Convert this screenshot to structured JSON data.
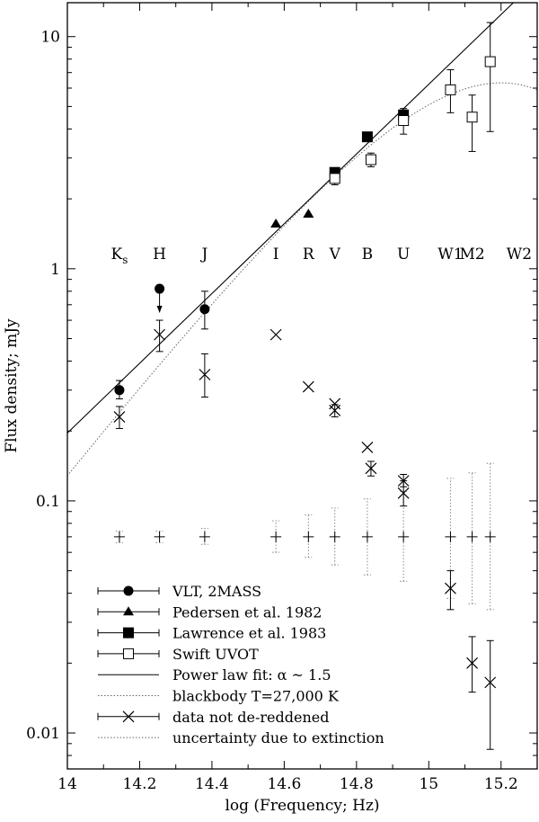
{
  "chart_data": {
    "type": "scatter",
    "xlabel": "log (Frequency; Hz)",
    "ylabel": "Flux density; mJy",
    "xlim": [
      14,
      15.3
    ],
    "ylim": [
      0.007,
      14
    ],
    "yscale": "log",
    "x_ticks": [
      {
        "v": 14,
        "label": "14"
      },
      {
        "v": 14.2,
        "label": "14.2"
      },
      {
        "v": 14.4,
        "label": "14.4"
      },
      {
        "v": 14.6,
        "label": "14.6"
      },
      {
        "v": 14.8,
        "label": "14.8"
      },
      {
        "v": 15,
        "label": "15"
      },
      {
        "v": 15.2,
        "label": "15.2"
      }
    ],
    "y_ticks": [
      {
        "v": 0.01,
        "label": "0.01"
      },
      {
        "v": 0.1,
        "label": "0.1"
      },
      {
        "v": 1,
        "label": "1"
      },
      {
        "v": 10,
        "label": "10"
      }
    ],
    "band_labels": [
      {
        "x": 14.144,
        "main": "K",
        "sub": "s"
      },
      {
        "x": 14.255,
        "main": "H",
        "sub": ""
      },
      {
        "x": 14.38,
        "main": "J",
        "sub": ""
      },
      {
        "x": 14.577,
        "main": "I",
        "sub": ""
      },
      {
        "x": 14.667,
        "main": "R",
        "sub": ""
      },
      {
        "x": 14.74,
        "main": "V",
        "sub": ""
      },
      {
        "x": 14.83,
        "main": "B",
        "sub": ""
      },
      {
        "x": 14.93,
        "main": "U",
        "sub": ""
      },
      {
        "x": 15.06,
        "main": "W1",
        "sub": ""
      },
      {
        "x": 15.12,
        "main": "M2",
        "sub": ""
      },
      {
        "x": 15.25,
        "main": "W2",
        "sub": ""
      }
    ],
    "series": [
      {
        "name": "VLT, 2MASS",
        "marker": "circle",
        "points": [
          {
            "x": 14.144,
            "y": 0.3,
            "lo": 0.275,
            "hi": 0.33
          },
          {
            "x": 14.255,
            "y": 0.82,
            "upper_limit": true
          },
          {
            "x": 14.38,
            "y": 0.67,
            "lo": 0.55,
            "hi": 0.8
          }
        ]
      },
      {
        "name": "Pedersen et al. 1982",
        "marker": "triangle",
        "points": [
          {
            "x": 14.577,
            "y": 1.56
          },
          {
            "x": 14.667,
            "y": 1.72
          }
        ]
      },
      {
        "name": "Lawrence et al. 1983",
        "marker": "square-filled",
        "points": [
          {
            "x": 14.74,
            "y": 2.6
          },
          {
            "x": 14.83,
            "y": 3.7
          },
          {
            "x": 14.93,
            "y": 4.6
          }
        ]
      },
      {
        "name": "Swift UVOT",
        "marker": "square-open",
        "points": [
          {
            "x": 14.74,
            "y": 2.45,
            "lo": 2.3,
            "hi": 2.6
          },
          {
            "x": 14.84,
            "y": 2.95,
            "lo": 2.75,
            "hi": 3.15
          },
          {
            "x": 14.93,
            "y": 4.35,
            "lo": 3.8,
            "hi": 4.9
          },
          {
            "x": 15.06,
            "y": 5.9,
            "lo": 4.7,
            "hi": 7.2
          },
          {
            "x": 15.12,
            "y": 4.5,
            "lo": 3.2,
            "hi": 5.6
          },
          {
            "x": 15.17,
            "y": 7.8,
            "lo": 3.9,
            "hi": 11.5
          }
        ]
      },
      {
        "name": "Power law fit: α ~ 1.5",
        "marker": "line-solid",
        "line": [
          [
            14,
            0.196
          ],
          [
            15.3,
            17.6
          ]
        ]
      },
      {
        "name": "blackbody T=27,000 K",
        "marker": "line-dotted",
        "curve": {
          "T": 27000,
          "norm_x": 14.93,
          "norm_y": 4.35
        }
      },
      {
        "name": "data not de-reddened",
        "marker": "cross",
        "points": [
          {
            "x": 14.144,
            "y": 0.23,
            "lo": 0.205,
            "hi": 0.255
          },
          {
            "x": 14.255,
            "y": 0.52,
            "lo": 0.44,
            "hi": 0.6
          },
          {
            "x": 14.38,
            "y": 0.35,
            "lo": 0.28,
            "hi": 0.43
          },
          {
            "x": 14.577,
            "y": 0.52
          },
          {
            "x": 14.667,
            "y": 0.31
          },
          {
            "x": 14.74,
            "y": 0.262
          },
          {
            "x": 14.74,
            "y": 0.245,
            "lo": 0.23,
            "hi": 0.26
          },
          {
            "x": 14.83,
            "y": 0.17
          },
          {
            "x": 14.84,
            "y": 0.138,
            "lo": 0.128,
            "hi": 0.148
          },
          {
            "x": 14.93,
            "y": 0.122,
            "lo": 0.115,
            "hi": 0.13
          },
          {
            "x": 14.93,
            "y": 0.108,
            "lo": 0.095,
            "hi": 0.122
          },
          {
            "x": 15.06,
            "y": 0.042,
            "lo": 0.034,
            "hi": 0.05
          },
          {
            "x": 15.12,
            "y": 0.02,
            "lo": 0.015,
            "hi": 0.026
          },
          {
            "x": 15.17,
            "y": 0.0165,
            "lo": 0.0085,
            "hi": 0.025
          }
        ]
      },
      {
        "name": "uncertainty due to extinction",
        "marker": "plus-dotted-bars",
        "y": 0.07,
        "points": [
          {
            "x": 14.144,
            "lo": 0.066,
            "hi": 0.074
          },
          {
            "x": 14.255,
            "lo": 0.066,
            "hi": 0.074
          },
          {
            "x": 14.38,
            "lo": 0.065,
            "hi": 0.076
          },
          {
            "x": 14.577,
            "lo": 0.06,
            "hi": 0.082
          },
          {
            "x": 14.667,
            "lo": 0.057,
            "hi": 0.087
          },
          {
            "x": 14.74,
            "lo": 0.053,
            "hi": 0.093
          },
          {
            "x": 14.83,
            "lo": 0.048,
            "hi": 0.102
          },
          {
            "x": 14.93,
            "lo": 0.045,
            "hi": 0.11
          },
          {
            "x": 15.06,
            "lo": 0.038,
            "hi": 0.125
          },
          {
            "x": 15.12,
            "lo": 0.036,
            "hi": 0.132
          },
          {
            "x": 15.17,
            "lo": 0.034,
            "hi": 0.145
          }
        ]
      }
    ],
    "legend": {
      "position": "bottom-left"
    },
    "grid": false
  }
}
